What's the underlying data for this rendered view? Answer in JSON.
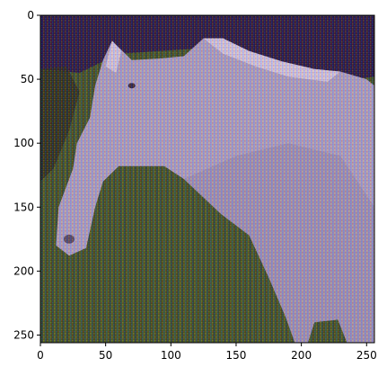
{
  "chart_data": {
    "type": "heatmap",
    "description_kind": "image (imshow)",
    "x": {
      "range": [
        0,
        256
      ],
      "ticks": [
        0,
        50,
        100,
        150,
        200,
        250
      ],
      "tick_labels": [
        "0",
        "50",
        "100",
        "150",
        "200",
        "250"
      ]
    },
    "y": {
      "range": [
        0,
        256
      ],
      "inverted": true,
      "ticks": [
        0,
        50,
        100,
        150,
        200,
        250
      ],
      "tick_labels": [
        "0",
        "50",
        "100",
        "150",
        "200",
        "250"
      ]
    },
    "grid": false,
    "legend": "none",
    "colors": {
      "sky": "#1e1638",
      "horse": "#a6a2c0",
      "horse_shade": "#8d89a8",
      "grass": "#3c5a22",
      "grass_dark": "#1e2712",
      "mane": "#d8d4e6"
    }
  }
}
